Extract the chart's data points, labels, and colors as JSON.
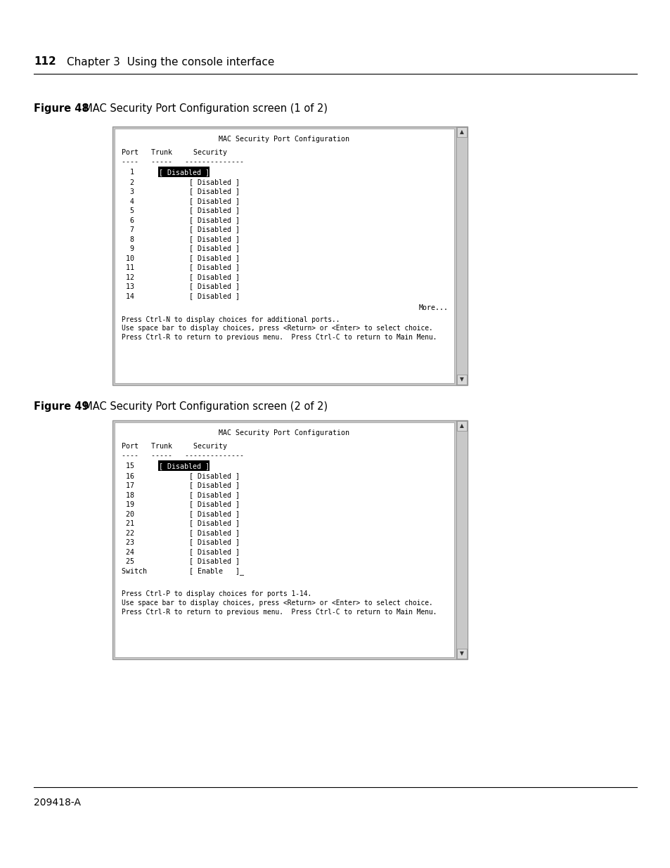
{
  "page_number": "112",
  "chapter_text": "Chapter 3  Using the console interface",
  "footer_text": "209418-A",
  "fig48_label": "Figure 48",
  "fig48_title": "  MAC Security Port Configuration screen (1 of 2)",
  "fig49_label": "Figure 49",
  "fig49_title": "  MAC Security Port Configuration screen (2 of 2)",
  "screen_title": "MAC Security Port Configuration",
  "screen_header": "Port   Trunk     Security",
  "screen_dashes1": "----   -----   --------------",
  "screen_dashes2": "----   -----   --------------",
  "screen1_lines": [
    "  1             [ Disabled ]",
    "  2             [ Disabled ]",
    "  3             [ Disabled ]",
    "  4             [ Disabled ]",
    "  5             [ Disabled ]",
    "  6             [ Disabled ]",
    "  7             [ Disabled ]",
    "  8             [ Disabled ]",
    "  9             [ Disabled ]",
    " 10             [ Disabled ]",
    " 11             [ Disabled ]",
    " 12             [ Disabled ]",
    " 13             [ Disabled ]",
    " 14             [ Disabled ]"
  ],
  "screen1_more": "More...",
  "screen1_footer": [
    "Press Ctrl-N to display choices for additional ports..",
    "Use space bar to display choices, press <Return> or <Enter> to select choice.",
    "Press Ctrl-R to return to previous menu.  Press Ctrl-C to return to Main Menu."
  ],
  "screen2_lines": [
    " 15             [ Disabled ]",
    " 16             [ Disabled ]",
    " 17             [ Disabled ]",
    " 18             [ Disabled ]",
    " 19             [ Disabled ]",
    " 20             [ Disabled ]",
    " 21             [ Disabled ]",
    " 22             [ Disabled ]",
    " 23             [ Disabled ]",
    " 24             [ Disabled ]",
    " 25             [ Disabled ]",
    "Switch          [ Enable   ]_"
  ],
  "screen2_footer": [
    "Press Ctrl-P to display choices for ports 1-14.",
    "Use space bar to display choices, press <Return> or <Enter> to select choice.",
    "Press Ctrl-R to return to previous menu.  Press Ctrl-C to return to Main Menu."
  ],
  "bg_color": "#ffffff",
  "text_color": "#000000",
  "mono_font_size": 7.2,
  "label_font_size": 10.5,
  "header_font_size": 11
}
